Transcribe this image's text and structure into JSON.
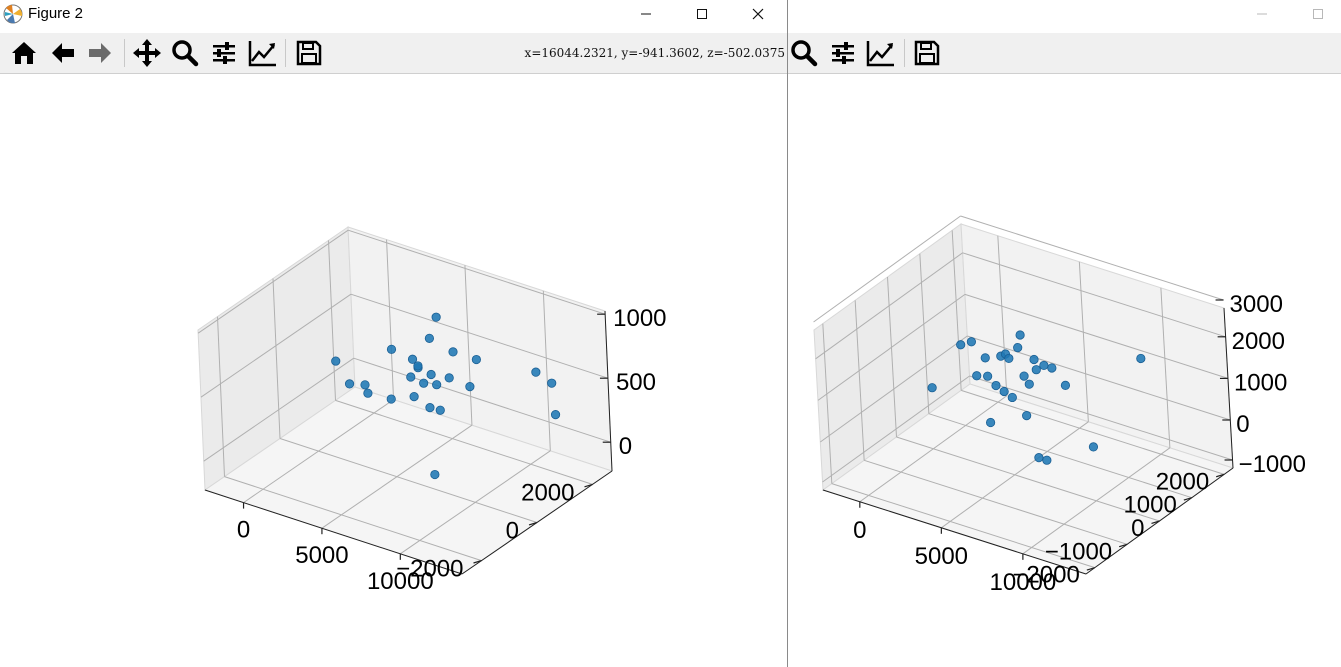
{
  "window_main": {
    "title": "Figure 2",
    "coordinates_readout": "x=16044.2321, y=-941.3602, z=-502.0375",
    "toolbar": [
      "home-icon",
      "back-arrow-icon",
      "forward-arrow-icon",
      "pan-move-icon",
      "zoom-magnifier-icon",
      "configure-subplots-icon",
      "edit-axis-icon",
      "save-figure-icon"
    ]
  },
  "window_second": {
    "toolbar": [
      "zoom-magnifier-icon",
      "configure-subplots-icon",
      "edit-axis-icon",
      "save-figure-icon"
    ]
  },
  "colors": {
    "point": "#1f77b4",
    "pane": "#f2f2f2",
    "grid": "#b0b0b0"
  },
  "chart_data": [
    {
      "type": "scatter",
      "title": "",
      "xlabel": "",
      "ylabel": "",
      "zlabel": "",
      "x_ticks": [
        "0",
        "5000",
        "10000"
      ],
      "y_ticks": [
        "−2000",
        "0",
        "2000"
      ],
      "z_ticks": [
        "0",
        "500",
        "1000"
      ],
      "xlim": [
        -2500,
        14000
      ],
      "ylim": [
        -3000,
        3000
      ],
      "zlim": [
        -250,
        1100
      ],
      "grid": true,
      "points": [
        {
          "x": -1500,
          "y": 1700,
          "z": 200
        },
        {
          "x": -1000,
          "y": 1900,
          "z": 0
        },
        {
          "x": 0,
          "y": 2000,
          "z": -50
        },
        {
          "x": 1000,
          "y": 2300,
          "z": -100
        },
        {
          "x": -500,
          "y": 2200,
          "z": -30
        },
        {
          "x": 2000,
          "y": 2500,
          "z": 100
        },
        {
          "x": 2500,
          "y": 2500,
          "z": 200
        },
        {
          "x": 2500,
          "y": 2300,
          "z": 300
        },
        {
          "x": 3000,
          "y": 2200,
          "z": 280
        },
        {
          "x": 3500,
          "y": 2400,
          "z": 200
        },
        {
          "x": 3000,
          "y": 2000,
          "z": 50
        },
        {
          "x": 4000,
          "y": 2300,
          "z": 150
        },
        {
          "x": 4500,
          "y": 2500,
          "z": 200
        },
        {
          "x": 4000,
          "y": 2000,
          "z": 0
        },
        {
          "x": 4500,
          "y": 1500,
          "z": 300
        },
        {
          "x": 5000,
          "y": 1800,
          "z": 50
        },
        {
          "x": 2500,
          "y": 1500,
          "z": 500
        },
        {
          "x": 5000,
          "y": 1500,
          "z": 700
        },
        {
          "x": 5500,
          "y": 1500,
          "z": 900
        },
        {
          "x": 6500,
          "y": 1500,
          "z": 650
        },
        {
          "x": 8000,
          "y": 1500,
          "z": 650
        },
        {
          "x": 7500,
          "y": 1500,
          "z": 400
        },
        {
          "x": 11000,
          "y": 2000,
          "z": 600
        },
        {
          "x": 12000,
          "y": 2000,
          "z": 550
        },
        {
          "x": 13000,
          "y": 1500,
          "z": 400
        },
        {
          "x": 10000,
          "y": -1500,
          "z": 200
        }
      ]
    },
    {
      "type": "scatter",
      "title": "",
      "xlabel": "",
      "ylabel": "",
      "zlabel": "",
      "x_ticks": [
        "0",
        "5000",
        "10000"
      ],
      "y_ticks": [
        "−2000",
        "−1000",
        "0",
        "1000",
        "2000"
      ],
      "z_ticks": [
        "−1000",
        "0",
        "1000",
        "2000",
        "3000"
      ],
      "xlim": [
        -2500,
        14000
      ],
      "ylim": [
        -2500,
        2500
      ],
      "zlim": [
        -1500,
        3200
      ],
      "grid": true,
      "points": [
        {
          "x": -2000,
          "y": 1000,
          "z": -600
        },
        {
          "x": -1000,
          "y": 1500,
          "z": 500
        },
        {
          "x": -500,
          "y": 1600,
          "z": 600
        },
        {
          "x": 500,
          "y": 1200,
          "z": 0
        },
        {
          "x": 1000,
          "y": 1300,
          "z": 0
        },
        {
          "x": 1500,
          "y": 1300,
          "z": -200
        },
        {
          "x": 2000,
          "y": 1300,
          "z": -300
        },
        {
          "x": 2500,
          "y": 1300,
          "z": -400
        },
        {
          "x": 1500,
          "y": 1000,
          "z": 800
        },
        {
          "x": 2500,
          "y": 1000,
          "z": 1000
        },
        {
          "x": 3000,
          "y": 900,
          "z": 1200
        },
        {
          "x": 3200,
          "y": 900,
          "z": 1100
        },
        {
          "x": 4000,
          "y": 800,
          "z": 1600
        },
        {
          "x": 4200,
          "y": 800,
          "z": 2000
        },
        {
          "x": 4500,
          "y": 700,
          "z": 900
        },
        {
          "x": 5000,
          "y": 800,
          "z": 1400
        },
        {
          "x": 5000,
          "y": 600,
          "z": 800
        },
        {
          "x": 5500,
          "y": 600,
          "z": 1300
        },
        {
          "x": 6000,
          "y": 600,
          "z": 1500
        },
        {
          "x": 6500,
          "y": 600,
          "z": 1500
        },
        {
          "x": 7500,
          "y": 500,
          "z": 1200
        },
        {
          "x": 2000,
          "y": 800,
          "z": -900
        },
        {
          "x": 5500,
          "y": 200,
          "z": 200
        },
        {
          "x": 7500,
          "y": -500,
          "z": -300
        },
        {
          "x": 8000,
          "y": -500,
          "z": -300
        },
        {
          "x": 12000,
          "y": -1000,
          "z": 1000
        },
        {
          "x": 13000,
          "y": 200,
          "z": 3000
        }
      ]
    }
  ]
}
